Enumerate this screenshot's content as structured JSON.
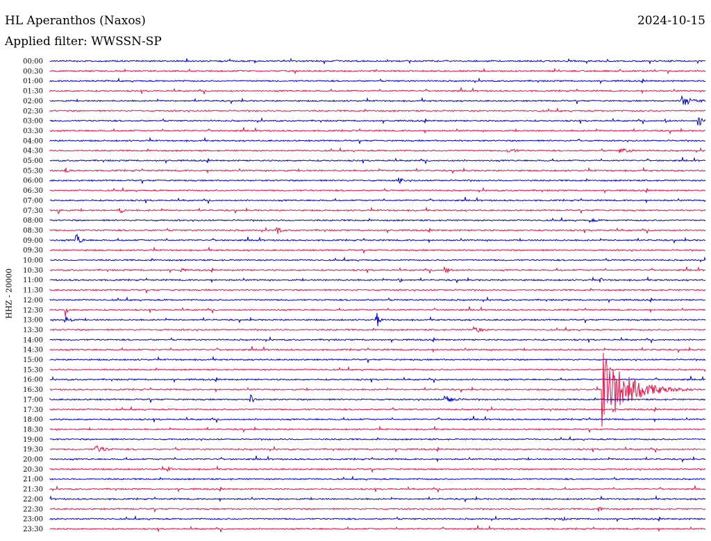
{
  "header": {
    "station": "HL Aperanthos (Naxos)",
    "date": "2024-10-15",
    "filter": "Applied filter: WWSSN-SP",
    "channel": "HHZ - 20000"
  },
  "colors": {
    "even_trace": "#0000dd",
    "odd_trace": "#ee1144"
  },
  "chart_data": {
    "type": "line",
    "title": "HL Aperanthos (Naxos)",
    "subtitle": "Applied filter: WWSSN-SP",
    "ylabel": "HHZ - 20000",
    "xlabel": "",
    "row_labels": [
      "00:00",
      "00:30",
      "01:00",
      "01:30",
      "02:00",
      "02:30",
      "03:00",
      "03:30",
      "04:00",
      "04:30",
      "05:00",
      "05:30",
      "06:00",
      "06:30",
      "07:00",
      "07:30",
      "08:00",
      "08:30",
      "09:00",
      "09:30",
      "10:00",
      "10:30",
      "11:00",
      "11:30",
      "12:00",
      "12:30",
      "13:00",
      "13:30",
      "14:00",
      "14:30",
      "15:00",
      "15:30",
      "16:00",
      "16:30",
      "17:00",
      "17:30",
      "18:00",
      "18:30",
      "19:00",
      "19:30",
      "20:00",
      "20:30",
      "21:00",
      "21:30",
      "22:00",
      "22:30",
      "23:00",
      "23:30"
    ],
    "x_range_minutes": [
      0,
      30
    ],
    "events": [
      {
        "row": "02:00",
        "minute": 28.9,
        "amplitude": 8,
        "duration": 1.4
      },
      {
        "row": "03:00",
        "minute": 29.7,
        "amplitude": 10,
        "duration": 0.5
      },
      {
        "row": "03:00",
        "minute": 28.2,
        "amplitude": 3,
        "duration": 0.5
      },
      {
        "row": "04:00",
        "minute": 24.2,
        "amplitude": 3,
        "duration": 0.3
      },
      {
        "row": "04:30",
        "minute": 20.9,
        "amplitude": 4,
        "duration": 1.3
      },
      {
        "row": "04:30",
        "minute": 26.1,
        "amplitude": 4,
        "duration": 1.3
      },
      {
        "row": "05:30",
        "minute": 0.7,
        "amplitude": 5,
        "duration": 0.4
      },
      {
        "row": "06:00",
        "minute": 16.0,
        "amplitude": 7,
        "duration": 0.3
      },
      {
        "row": "07:30",
        "minute": 0.4,
        "amplitude": 7,
        "duration": 0.3
      },
      {
        "row": "07:30",
        "minute": 3.2,
        "amplitude": 6,
        "duration": 0.4
      },
      {
        "row": "08:00",
        "minute": 24.7,
        "amplitude": 3,
        "duration": 1.3
      },
      {
        "row": "08:30",
        "minute": 10.4,
        "amplitude": 8,
        "duration": 0.3
      },
      {
        "row": "09:00",
        "minute": 1.2,
        "amplitude": 12,
        "duration": 0.4
      },
      {
        "row": "10:30",
        "minute": 6.0,
        "amplitude": 4,
        "duration": 0.4
      },
      {
        "row": "10:30",
        "minute": 18.1,
        "amplitude": 8,
        "duration": 0.4
      },
      {
        "row": "11:00",
        "minute": 16.0,
        "amplitude": 4,
        "duration": 0.4
      },
      {
        "row": "11:00",
        "minute": 25.2,
        "amplitude": 5,
        "duration": 0.2
      },
      {
        "row": "12:30",
        "minute": 0.7,
        "amplitude": 10,
        "duration": 0.2
      },
      {
        "row": "13:00",
        "minute": 0.7,
        "amplitude": 12,
        "duration": 0.4
      },
      {
        "row": "13:00",
        "minute": 15.0,
        "amplitude": 12,
        "duration": 0.2
      },
      {
        "row": "13:30",
        "minute": 19.4,
        "amplitude": 6,
        "duration": 0.8
      },
      {
        "row": "16:30",
        "minute": 25.3,
        "amplitude": 55,
        "duration": 2.5
      },
      {
        "row": "17:00",
        "minute": 18.1,
        "amplitude": 6,
        "duration": 1.2
      },
      {
        "row": "17:00",
        "minute": 9.2,
        "amplitude": 7,
        "duration": 0.3
      },
      {
        "row": "19:30",
        "minute": 2.1,
        "amplitude": 6,
        "duration": 1.2
      },
      {
        "row": "20:30",
        "minute": 5.4,
        "amplitude": 3,
        "duration": 0.8
      },
      {
        "row": "22:30",
        "minute": 25.1,
        "amplitude": 4,
        "duration": 0.6
      },
      {
        "row": "23:00",
        "minute": 23.5,
        "amplitude": 3,
        "duration": 0.5
      }
    ]
  }
}
